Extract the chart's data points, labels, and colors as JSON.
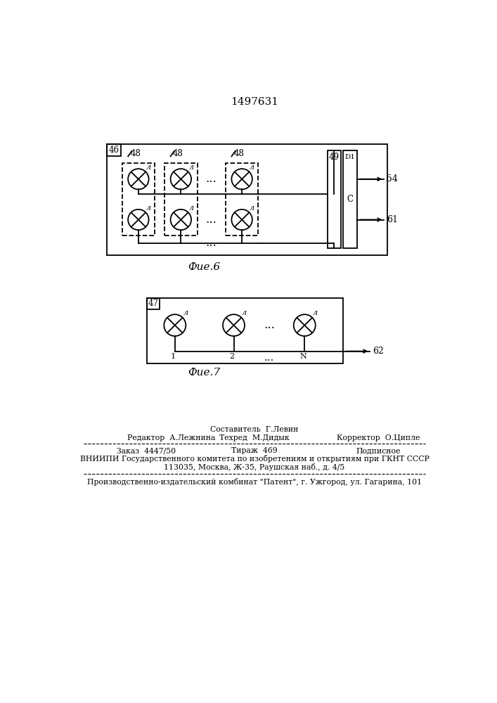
{
  "title": "1497631",
  "fig6_caption": "Фие.6",
  "fig7_caption": "Фие.7",
  "bg_color": "#ffffff",
  "line_color": "#000000",
  "footer_line1": "Составитель  Г.Левин",
  "footer_line2_left": "Редактор  А.Лежнина",
  "footer_line2_mid": "Техред  М.Дидык",
  "footer_line2_right": "Корректор  О.Ципле",
  "footer_line3_left": "Заказ  4447/50",
  "footer_line3_mid": "Тираж  469",
  "footer_line3_right": "Подписное",
  "footer_line4": "ВНИИПИ Государственного комитета по изобретениям и открытиям при ГКНТ СССР",
  "footer_line5": "113035, Москва, Ж-35, Раушская наб., д. 4/5",
  "footer_line6": "Производственно-издательский комбинат \"Патент\", г. Ужгород, ул. Гагарина, 101"
}
